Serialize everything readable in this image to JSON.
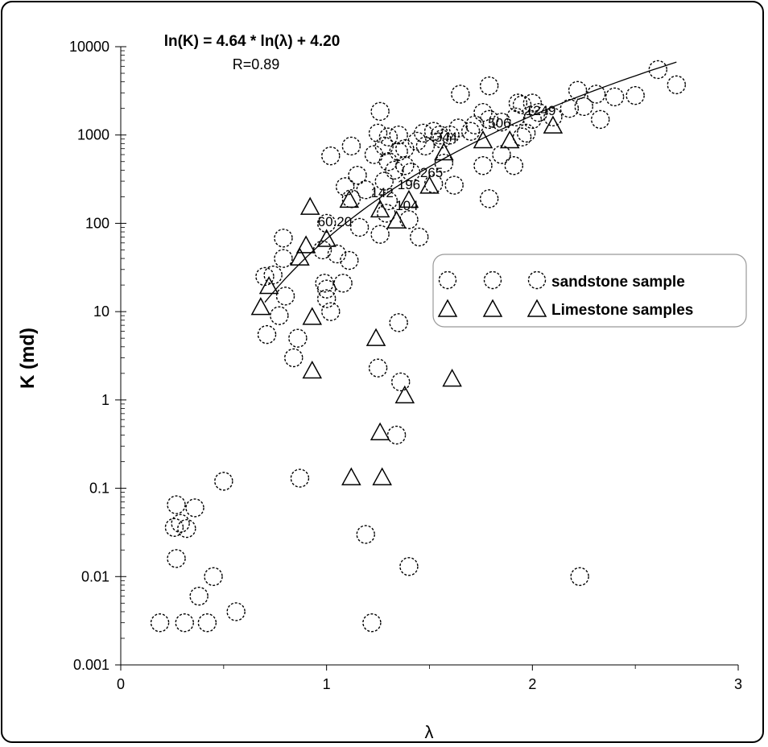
{
  "chart_data": {
    "type": "scatter",
    "title": "",
    "xlabel": "λ",
    "ylabel": "K (md)",
    "xlim": [
      0,
      3
    ],
    "ylim": [
      0.001,
      10000
    ],
    "yscale": "log",
    "grid": false,
    "legend_position": "right",
    "x_ticks": [
      "0",
      "1",
      "2",
      "3"
    ],
    "y_ticks": [
      "0.001",
      "0.01",
      "0.1",
      "1",
      "10",
      "100",
      "1000",
      "10000"
    ],
    "equation": "ln(K) = 4.64 * ln(λ) + 4.20",
    "r_value": "R=0.89",
    "fit_line": {
      "slope": 4.64,
      "intercept": 4.2,
      "x_range": [
        0.7,
        2.7
      ]
    },
    "series": [
      {
        "name": "sandstone sample",
        "marker": "circle",
        "legend_label": "sandstone sample",
        "points": [
          [
            0.19,
            0.003
          ],
          [
            0.31,
            0.003
          ],
          [
            0.42,
            0.003
          ],
          [
            0.56,
            0.004
          ],
          [
            0.38,
            0.006
          ],
          [
            0.45,
            0.01
          ],
          [
            0.27,
            0.016
          ],
          [
            0.26,
            0.036
          ],
          [
            0.29,
            0.04
          ],
          [
            0.32,
            0.035
          ],
          [
            0.27,
            0.065
          ],
          [
            0.36,
            0.06
          ],
          [
            0.5,
            0.12
          ],
          [
            0.87,
            0.13
          ],
          [
            1.19,
            0.03
          ],
          [
            1.22,
            0.003
          ],
          [
            1.4,
            0.013
          ],
          [
            2.23,
            0.01
          ],
          [
            1.34,
            0.4
          ],
          [
            1.36,
            1.6
          ],
          [
            1.25,
            2.3
          ],
          [
            1.35,
            7.5
          ],
          [
            0.84,
            3.0
          ],
          [
            0.86,
            5.0
          ],
          [
            0.71,
            5.5
          ],
          [
            0.77,
            9.0
          ],
          [
            1.02,
            10.0
          ],
          [
            1.0,
            14.0
          ],
          [
            1.0,
            18.0
          ],
          [
            0.99,
            21.0
          ],
          [
            1.08,
            21.0
          ],
          [
            0.8,
            15.0
          ],
          [
            0.7,
            25.0
          ],
          [
            0.74,
            26.0
          ],
          [
            0.79,
            40.0
          ],
          [
            0.79,
            68.0
          ],
          [
            0.98,
            50.0
          ],
          [
            1.05,
            45.0
          ],
          [
            1.11,
            38.0
          ],
          [
            1.16,
            90.0
          ],
          [
            1.0,
            100.0
          ],
          [
            1.26,
            75.0
          ],
          [
            1.29,
            130.0
          ],
          [
            1.3,
            180.0
          ],
          [
            1.4,
            110.0
          ],
          [
            1.45,
            70.0
          ],
          [
            1.12,
            190.0
          ],
          [
            1.09,
            260.0
          ],
          [
            1.15,
            350.0
          ],
          [
            1.19,
            240.0
          ],
          [
            1.28,
            300.0
          ],
          [
            1.33,
            400.0
          ],
          [
            1.38,
            450.0
          ],
          [
            1.41,
            380.0
          ],
          [
            1.3,
            500.0
          ],
          [
            1.35,
            650.0
          ],
          [
            1.23,
            600.0
          ],
          [
            1.02,
            580.0
          ],
          [
            1.12,
            750.0
          ],
          [
            1.28,
            750.0
          ],
          [
            1.38,
            700.0
          ],
          [
            1.44,
            850.0
          ],
          [
            1.3,
            950.0
          ],
          [
            1.35,
            1000.0
          ],
          [
            1.25,
            1050.0
          ],
          [
            1.47,
            1050.0
          ],
          [
            1.52,
            1100.0
          ],
          [
            1.56,
            900.0
          ],
          [
            1.6,
            1000.0
          ],
          [
            1.62,
            270.0
          ],
          [
            1.57,
            480.0
          ],
          [
            1.52,
            280.0
          ],
          [
            1.76,
            450.0
          ],
          [
            1.79,
            190.0
          ],
          [
            1.85,
            600.0
          ],
          [
            1.91,
            450.0
          ],
          [
            1.95,
            950.0
          ],
          [
            1.7,
            1100.0
          ],
          [
            1.64,
            1200.0
          ],
          [
            1.72,
            1300.0
          ],
          [
            1.79,
            1500.0
          ],
          [
            1.85,
            1400.0
          ],
          [
            1.92,
            1600.0
          ],
          [
            1.97,
            1050.0
          ],
          [
            2.0,
            1500.0
          ],
          [
            2.03,
            1800.0
          ],
          [
            2.1,
            1600.0
          ],
          [
            2.18,
            2000.0
          ],
          [
            2.25,
            2100.0
          ],
          [
            2.33,
            1500.0
          ],
          [
            2.4,
            2700.0
          ],
          [
            2.31,
            2900.0
          ],
          [
            2.5,
            2800.0
          ],
          [
            2.61,
            5500.0
          ],
          [
            2.7,
            3700.0
          ],
          [
            2.22,
            3200.0
          ],
          [
            1.93,
            2300.0
          ],
          [
            1.95,
            2200.0
          ],
          [
            2.0,
            2300.0
          ],
          [
            1.76,
            1800.0
          ],
          [
            1.79,
            3600.0
          ],
          [
            1.65,
            2900.0
          ],
          [
            1.26,
            1850.0
          ],
          [
            1.55,
            1000.0
          ],
          [
            1.48,
            750.0
          ]
        ]
      },
      {
        "name": "Limestone samples",
        "marker": "triangle",
        "legend_label": "Limestone samples",
        "points": [
          [
            0.68,
            11.0
          ],
          [
            0.72,
            19.0
          ],
          [
            0.87,
            40.0
          ],
          [
            0.9,
            55.0
          ],
          [
            0.92,
            150.0
          ],
          [
            1.0,
            65.0
          ],
          [
            1.11,
            180.0
          ],
          [
            1.26,
            140.0
          ],
          [
            1.34,
            105.0
          ],
          [
            1.4,
            180.0
          ],
          [
            1.5,
            260.0
          ],
          [
            1.57,
            620.0
          ],
          [
            1.76,
            850.0
          ],
          [
            1.89,
            850.0
          ],
          [
            2.1,
            1250.0
          ],
          [
            0.93,
            8.5
          ],
          [
            0.93,
            2.1
          ],
          [
            1.24,
            4.9
          ],
          [
            1.38,
            1.1
          ],
          [
            1.61,
            1.7
          ],
          [
            1.26,
            0.42
          ],
          [
            1.12,
            0.13
          ],
          [
            1.27,
            0.13
          ]
        ]
      }
    ],
    "data_labels": [
      {
        "text": "60.20",
        "x": 1.04,
        "y": 105
      },
      {
        "text": "1249",
        "x": 2.04,
        "y": 1900
      },
      {
        "text": "506",
        "x": 1.84,
        "y": 1380
      },
      {
        "text": "344",
        "x": 1.58,
        "y": 950
      },
      {
        "text": "265",
        "x": 1.51,
        "y": 380
      },
      {
        "text": "196",
        "x": 1.4,
        "y": 275
      },
      {
        "text": "142",
        "x": 1.27,
        "y": 225
      },
      {
        "text": "104",
        "x": 1.39,
        "y": 160
      }
    ]
  }
}
